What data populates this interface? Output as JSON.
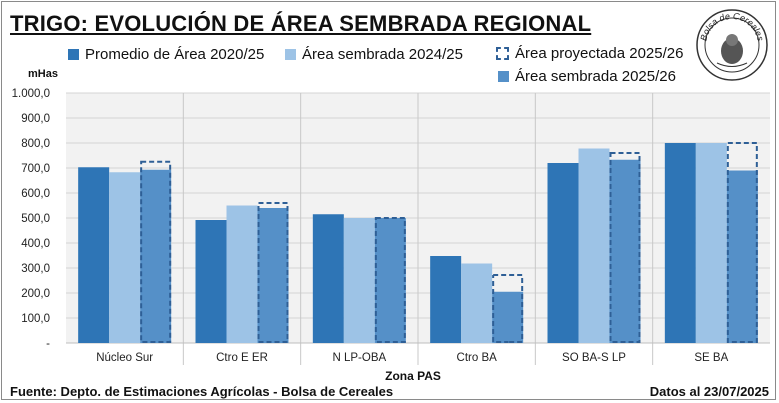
{
  "title": "TRIGO: EVOLUCIÓN DE ÁREA SEMBRADA REGIONAL",
  "logo": {
    "text": "Bolsa de Cereales"
  },
  "legend": [
    {
      "label": "Promedio de Área 2020/25",
      "color": "#2e75b6"
    },
    {
      "label": "Área sembrada 2024/25",
      "color": "#9dc3e6"
    },
    {
      "label": "Área proyectada 2025/26",
      "color": "#2e5f96"
    },
    {
      "label": "Área sembrada 2025/26",
      "color": "#5590c8"
    }
  ],
  "footer": {
    "source": "Fuente: Depto. de Estimaciones Agrícolas - Bolsa de Cereales",
    "date": "Datos al 23/07/2025"
  },
  "chart_data": {
    "type": "bar",
    "ylabel": "mHas",
    "xlabel": "Zona PAS",
    "ylim": [
      0,
      1000
    ],
    "yticks": [
      "-",
      "100,0",
      "200,0",
      "300,0",
      "400,0",
      "500,0",
      "600,0",
      "700,0",
      "800,0",
      "900,0",
      "1.000,0"
    ],
    "categories": [
      "Núcleo Sur",
      "Ctro E ER",
      "N LP-OBA",
      "Ctro BA",
      "SO BA-S LP",
      "SE BA"
    ],
    "series": [
      {
        "name": "Promedio de Área 2020/25",
        "values": [
          703,
          492,
          515,
          348,
          720,
          800
        ],
        "color": "#2e75b6"
      },
      {
        "name": "Área sembrada 2024/25",
        "values": [
          683,
          550,
          500,
          318,
          778,
          800
        ],
        "color": "#9dc3e6"
      },
      {
        "name": "Área proyectada 2025/26",
        "values": [
          725,
          560,
          500,
          272,
          760,
          800
        ],
        "color": "#2e5f96",
        "style": "dashed-outline"
      },
      {
        "name": "Área sembrada 2025/26",
        "values": [
          693,
          540,
          500,
          205,
          733,
          690
        ],
        "color": "#5590c8"
      }
    ],
    "grid": true,
    "legend_position": "top"
  }
}
